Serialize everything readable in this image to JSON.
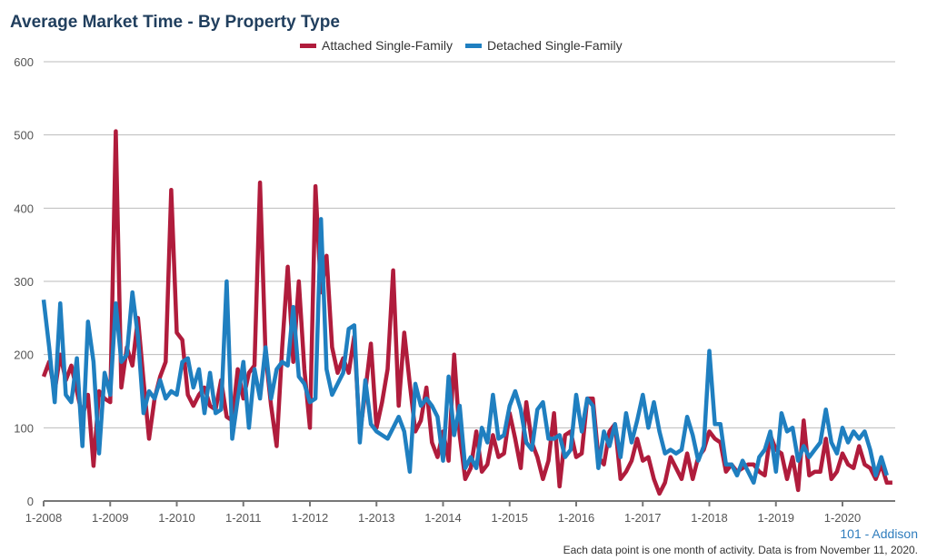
{
  "chart_data": {
    "type": "line",
    "title": "Average Market Time - By Property Type",
    "x_start": "1-2008",
    "frequency": "monthly",
    "x_tick_labels": [
      "1-2008",
      "1-2009",
      "1-2010",
      "1-2011",
      "1-2012",
      "1-2013",
      "1-2014",
      "1-2015",
      "1-2016",
      "1-2017",
      "1-2018",
      "1-2019",
      "1-2020"
    ],
    "ylim": [
      0,
      600
    ],
    "y_ticks": [
      0,
      100,
      200,
      300,
      400,
      500,
      600
    ],
    "grid": true,
    "legend": "top-center",
    "series": [
      {
        "name": "Attached Single-Family",
        "color": "#b01c3c",
        "values": [
          170,
          190,
          150,
          200,
          165,
          185,
          150,
          115,
          145,
          48,
          150,
          140,
          135,
          505,
          155,
          210,
          185,
          250,
          165,
          85,
          140,
          170,
          190,
          425,
          230,
          220,
          145,
          130,
          145,
          155,
          130,
          125,
          165,
          115,
          110,
          180,
          140,
          175,
          185,
          435,
          200,
          130,
          75,
          210,
          320,
          190,
          300,
          180,
          100,
          430,
          285,
          335,
          210,
          175,
          195,
          175,
          225,
          90,
          150,
          215,
          100,
          135,
          180,
          315,
          130,
          230,
          160,
          95,
          110,
          155,
          80,
          60,
          95,
          55,
          200,
          90,
          30,
          45,
          95,
          40,
          50,
          90,
          60,
          65,
          120,
          85,
          45,
          135,
          80,
          60,
          30,
          55,
          120,
          20,
          90,
          95,
          60,
          65,
          140,
          140,
          60,
          50,
          95,
          105,
          30,
          40,
          55,
          85,
          55,
          60,
          30,
          10,
          25,
          60,
          45,
          30,
          65,
          30,
          60,
          70,
          95,
          85,
          80,
          40,
          50,
          40,
          45,
          50,
          50,
          40,
          35,
          90,
          70,
          65,
          30,
          60,
          15,
          110,
          35,
          40,
          40,
          85,
          30,
          40,
          65,
          50,
          45,
          75,
          50,
          45,
          30,
          50,
          25,
          25
        ]
      },
      {
        "name": "Detached Single-Family",
        "color": "#1f7fc0",
        "values": [
          275,
          210,
          135,
          270,
          145,
          135,
          195,
          75,
          245,
          190,
          65,
          175,
          145,
          270,
          190,
          200,
          285,
          225,
          120,
          150,
          140,
          165,
          140,
          150,
          145,
          190,
          195,
          155,
          180,
          120,
          175,
          120,
          125,
          300,
          85,
          140,
          190,
          100,
          180,
          140,
          210,
          140,
          180,
          190,
          185,
          265,
          170,
          160,
          135,
          140,
          385,
          180,
          145,
          160,
          175,
          235,
          240,
          80,
          165,
          105,
          95,
          90,
          85,
          100,
          115,
          95,
          40,
          160,
          130,
          140,
          130,
          115,
          55,
          170,
          90,
          130,
          45,
          60,
          45,
          100,
          80,
          145,
          85,
          90,
          130,
          150,
          125,
          80,
          70,
          125,
          135,
          85,
          85,
          90,
          60,
          70,
          145,
          95,
          140,
          130,
          45,
          95,
          75,
          105,
          60,
          120,
          80,
          110,
          145,
          100,
          135,
          95,
          65,
          70,
          65,
          70,
          115,
          90,
          55,
          75,
          205,
          105,
          105,
          50,
          50,
          35,
          55,
          40,
          25,
          60,
          70,
          95,
          40,
          120,
          95,
          100,
          55,
          75,
          60,
          70,
          80,
          125,
          80,
          65,
          100,
          80,
          95,
          85,
          95,
          70,
          35,
          60,
          35
        ]
      }
    ]
  },
  "footer": {
    "place": "101 - Addison",
    "note": "Each data point is one month of activity. Data is from November 11, 2020."
  }
}
